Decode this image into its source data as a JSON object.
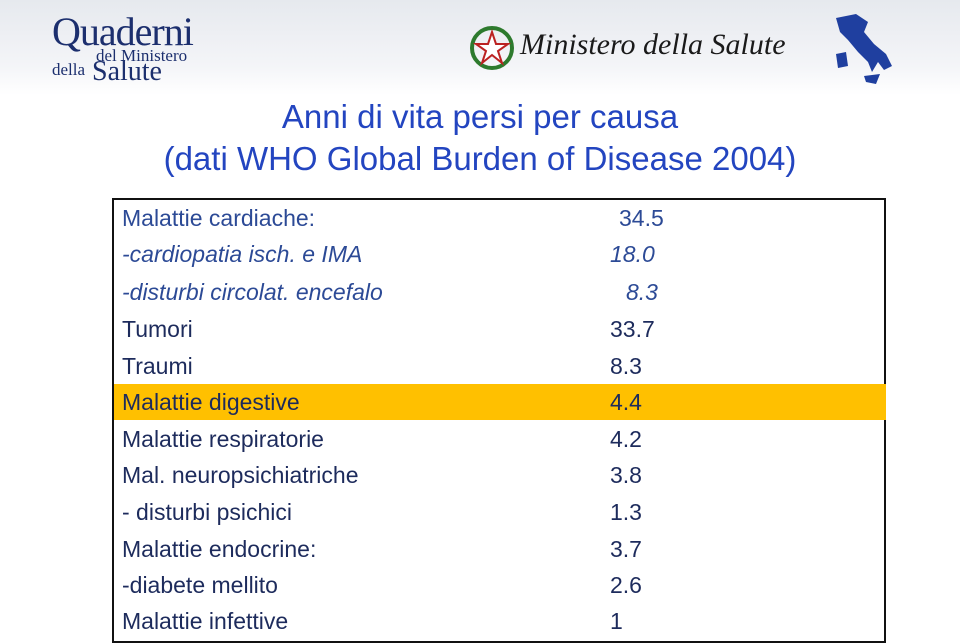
{
  "header": {
    "logo_lines": [
      "Quaderni",
      "del Ministero",
      "della",
      "Salute"
    ],
    "ministry": "Ministero della Salute"
  },
  "title": [
    "Anni di vita persi per causa",
    "(dati WHO Global Burden of Disease 2004)"
  ],
  "table": {
    "rows": [
      [
        "Malattie cardiache:",
        "34.5"
      ],
      [
        "-cardiopatia isch. e IMA",
        "18.0"
      ],
      [
        "-disturbi circolat. encefalo",
        "8.3"
      ],
      [
        "Tumori",
        "33.7"
      ],
      [
        "Traumi",
        "8.3"
      ],
      [
        "Malattie digestive",
        "4.4"
      ],
      [
        "Malattie respiratorie",
        "4.2"
      ],
      [
        "Mal. neuropsichiatriche",
        "3.8"
      ],
      [
        "-  disturbi psichici",
        "1.3"
      ],
      [
        "Malattie endocrine:",
        "3.7"
      ],
      [
        "-diabete mellito",
        "2.6"
      ],
      [
        "Malattie infettive",
        "1"
      ]
    ]
  }
}
